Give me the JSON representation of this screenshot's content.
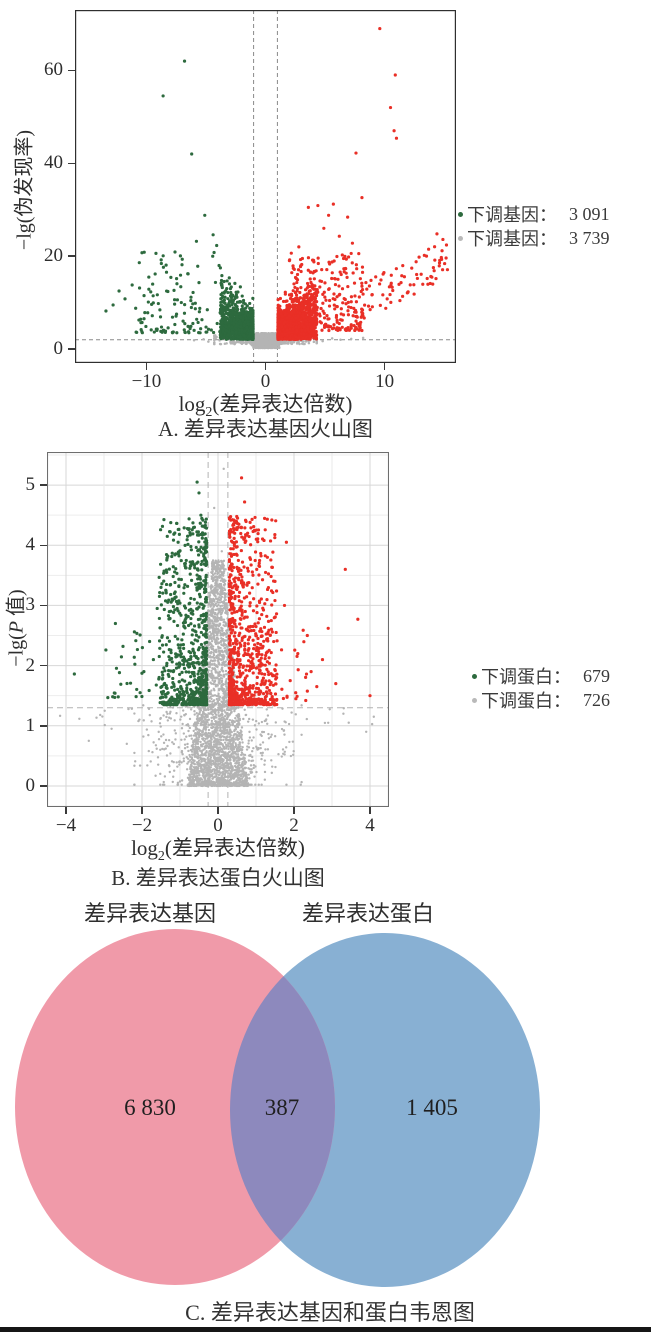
{
  "page": {
    "background": "#ffffff",
    "bottom_bar_color": "#161616"
  },
  "chart_data": [
    {
      "type": "scatter",
      "subtype": "volcano",
      "caption": "A. 差异表达基因火山图",
      "xlabel": {
        "pre": "log",
        "sub": "2",
        "post": "(差异表达倍数)"
      },
      "ylabel": "−lg(伪发现率)",
      "xlim": [
        -16,
        16
      ],
      "ylim": [
        -3,
        73
      ],
      "x_ticks": [
        -10,
        0,
        10
      ],
      "y_ticks": [
        0,
        20,
        40,
        60
      ],
      "grid": false,
      "thresholds": {
        "vlines": [
          -1,
          1
        ],
        "hline": 2
      },
      "legend": [
        {
          "label": "下调基因：",
          "value": "3 091",
          "color": "#2d6a3e"
        },
        {
          "label": "下调基因：",
          "value": "3 739",
          "color": "#b9b9b9"
        }
      ],
      "colors": {
        "up": "#e92f26",
        "down": "#2d6a3e",
        "ns": "#b4b4b4"
      },
      "clusters": [
        {
          "type": "blob",
          "color": "ns",
          "n": 1200,
          "xMean": 0,
          "xSd": 0.5,
          "clipX": 1.15,
          "yMean": 1.7,
          "ySd": 0.8,
          "yMin": 0.25,
          "yMax": 3.4
        },
        {
          "type": "uniform",
          "color": "ns",
          "n": 480,
          "gaussX": true,
          "xMean": 0,
          "xSd": 1.9,
          "xMin": -4.3,
          "xMax": 4.3,
          "yMin": 1.05,
          "yMax": 3.0,
          "powY": 1.2
        },
        {
          "type": "points",
          "color": "ns",
          "pts": [
            [
              -5.2,
              2.1
            ],
            [
              5.6,
              2.3
            ],
            [
              6.3,
              2.0
            ],
            [
              -6,
              1.9
            ],
            [
              4.8,
              1.7
            ],
            [
              7.2,
              2.2
            ],
            [
              -4.8,
              1.6
            ],
            [
              8.2,
              2.4
            ]
          ]
        },
        {
          "type": "wedge",
          "color": "down",
          "n": 1350,
          "xPeak": -1.05,
          "xFar": -3.8,
          "yBase": 2.1,
          "ySpread": 2.4,
          "slope": 0.5,
          "yMax": 16.5
        },
        {
          "type": "uniform",
          "color": "down",
          "n": 120,
          "xMin": -11,
          "xMax": -3.6,
          "yMin": 3.5,
          "yMax": 21,
          "powY": 2
        },
        {
          "type": "points",
          "color": "down",
          "pts": [
            [
              -6.8,
              62
            ],
            [
              -8.6,
              54.5
            ],
            [
              -6.2,
              42
            ],
            [
              -5.1,
              28.8
            ],
            [
              -4.4,
              24.6
            ],
            [
              -9.2,
              20.6
            ],
            [
              -10.6,
              18.6
            ],
            [
              -7.6,
              20.9
            ],
            [
              -4.1,
              22.3
            ],
            [
              -5.8,
              23.2
            ],
            [
              -3.9,
              18
            ],
            [
              -6.5,
              16.2
            ],
            [
              -9.8,
              15.5
            ],
            [
              -11.2,
              13.8
            ],
            [
              -12.3,
              12.5
            ],
            [
              -11.8,
              10.8
            ],
            [
              -12.8,
              9.5
            ],
            [
              -13.4,
              8.2
            ],
            [
              -10.2,
              11.5
            ],
            [
              -9,
              9.8
            ],
            [
              -8.2,
              12.4
            ],
            [
              -7.4,
              10.6
            ]
          ]
        },
        {
          "type": "wedge",
          "color": "up",
          "n": 1600,
          "xPeak": 1.05,
          "xFar": 4.3,
          "yBase": 2.1,
          "ySpread": 2.5,
          "slope": 0.45,
          "yMax": 17
        },
        {
          "type": "uniform",
          "color": "up",
          "n": 280,
          "xMin": 1.8,
          "xMax": 8.2,
          "yMin": 4,
          "yMax": 21,
          "powY": 1.7
        },
        {
          "type": "uniform",
          "color": "up",
          "n": 75,
          "xMin": 8,
          "xMax": 15.3,
          "yMin": 6,
          "yMax": 14,
          "powY": 1.3,
          "trend": 1.3
        },
        {
          "type": "points",
          "color": "up",
          "pts": [
            [
              9.6,
              69
            ],
            [
              10.9,
              59
            ],
            [
              10.5,
              52
            ],
            [
              10.8,
              47
            ],
            [
              11,
              45.4
            ],
            [
              7.6,
              42.2
            ],
            [
              8.1,
              32.6
            ],
            [
              5.7,
              31.2
            ],
            [
              4.4,
              30.9
            ],
            [
              5.3,
              28.8
            ],
            [
              3.6,
              30.5
            ],
            [
              6.9,
              28.4
            ],
            [
              14.9,
              23.6
            ],
            [
              15.2,
              22.4
            ],
            [
              14.4,
              24.8
            ],
            [
              13.7,
              21.5
            ],
            [
              12.9,
              19.8
            ],
            [
              4.9,
              26
            ],
            [
              2.8,
              22
            ],
            [
              3.1,
              19.5
            ],
            [
              6.2,
              24.3
            ],
            [
              7.3,
              22.8
            ]
          ]
        }
      ]
    },
    {
      "type": "scatter",
      "subtype": "volcano",
      "caption": "B. 差异表达蛋白火山图",
      "xlabel": {
        "pre": "log",
        "sub": "2",
        "post": "(差异表达倍数)"
      },
      "ylabel": {
        "pre": "−lg(",
        "italic": "P",
        "post": " 值)"
      },
      "xlim": [
        -4.5,
        4.5
      ],
      "ylim": [
        -0.35,
        5.55
      ],
      "x_ticks": [
        -4,
        -2,
        0,
        2,
        4
      ],
      "y_ticks": [
        0,
        1,
        2,
        3,
        4,
        5
      ],
      "grid": true,
      "thresholds": {
        "vlines": [
          -0.26,
          0.26
        ],
        "hline": 1.3
      },
      "legend": [
        {
          "label": "下调蛋白：",
          "value": "679",
          "color": "#2d6a3e"
        },
        {
          "label": "下调蛋白：",
          "value": "726",
          "color": "#b9b9b9"
        }
      ],
      "colors": {
        "up": "#e92f26",
        "down": "#2d6a3e",
        "ns": "#b4b4b4"
      },
      "clusters": [
        {
          "type": "funnel",
          "color": "ns",
          "n": 2400,
          "xCenter": 0,
          "yMin": 0,
          "yMax": 3.75,
          "powY": 1.7,
          "hwTop": 0.16,
          "hwBottom": 0.8,
          "powHw": 1.2
        },
        {
          "type": "blob",
          "color": "ns",
          "n": 600,
          "xMean": 0,
          "xSd": 0.85,
          "clipX": 2.2,
          "yMean": 0.6,
          "ySd": 0.45,
          "yMin": 0.02,
          "yMax": 1.34
        },
        {
          "type": "uniform",
          "color": "ns",
          "n": 55,
          "gaussX": true,
          "xMean": 0,
          "xSd": 1.9,
          "xMin": -4.3,
          "xMax": 4.3,
          "yMin": 1.0,
          "yMax": 1.32
        },
        {
          "type": "points",
          "color": "ns",
          "pts": [
            [
              0.15,
              5.27
            ],
            [
              -0.1,
              4.62
            ],
            [
              0.1,
              3.9
            ],
            [
              -0.15,
              3.72
            ],
            [
              0.2,
              3.6
            ],
            [
              4.1,
              1.15
            ],
            [
              3.9,
              0.9
            ],
            [
              -3.4,
              0.75
            ],
            [
              2.9,
              1.05
            ],
            [
              -2.8,
              0.95
            ],
            [
              3.3,
              1.2
            ],
            [
              -3.1,
              1.18
            ],
            [
              -2.4,
              0.7
            ],
            [
              2.2,
              0.85
            ]
          ]
        },
        {
          "type": "column",
          "color": "down",
          "n": 800,
          "xPeak": -0.3,
          "xFar": -1.55,
          "yBase": 1.35,
          "yTop": 4.45,
          "powY": 2.2
        },
        {
          "type": "uniform",
          "color": "down",
          "n": 26,
          "xMin": -3.0,
          "xMax": -1.55,
          "yMin": 1.45,
          "yMax": 2.85,
          "powY": 1.4
        },
        {
          "type": "points",
          "color": "down",
          "pts": [
            [
              -3.78,
              1.86
            ],
            [
              -2.95,
              2.26
            ],
            [
              -2.7,
              2.7
            ],
            [
              -2.5,
              2.32
            ],
            [
              -2.2,
              2.56
            ],
            [
              -1.95,
              1.9
            ],
            [
              -2.05,
              1.55
            ],
            [
              -1.7,
              2.1
            ],
            [
              -0.55,
              5.05
            ],
            [
              -0.5,
              4.87
            ],
            [
              -0.62,
              4.3
            ],
            [
              -0.45,
              4.5
            ],
            [
              -1.05,
              4.05
            ],
            [
              -0.8,
              4.15
            ],
            [
              -1.5,
              3.3
            ],
            [
              -1.35,
              3.55
            ],
            [
              -1.6,
              2.95
            ],
            [
              -1.8,
              2.4
            ]
          ]
        },
        {
          "type": "column",
          "color": "up",
          "n": 820,
          "xPeak": 0.3,
          "xFar": 1.55,
          "yBase": 1.35,
          "yTop": 4.5,
          "powY": 2.2
        },
        {
          "type": "uniform",
          "color": "up",
          "n": 38,
          "xMin": 0.9,
          "xMax": 2.4,
          "yMin": 1.4,
          "yMax": 3.0,
          "powY": 1.4
        },
        {
          "type": "points",
          "color": "up",
          "pts": [
            [
              0.62,
              5.12
            ],
            [
              0.7,
              4.72
            ],
            [
              0.78,
              4.2
            ],
            [
              0.55,
              4.35
            ],
            [
              1.8,
              4.05
            ],
            [
              3.35,
              3.6
            ],
            [
              3.68,
              2.77
            ],
            [
              2.9,
              2.62
            ],
            [
              2.35,
              2.5
            ],
            [
              2.1,
              2.2
            ],
            [
              1.9,
              1.75
            ],
            [
              2.6,
              1.65
            ],
            [
              2.05,
              1.45
            ],
            [
              1.75,
              3.0
            ],
            [
              1.5,
              3.4
            ],
            [
              1.3,
              3.8
            ],
            [
              2.45,
              1.9
            ],
            [
              4.0,
              1.5
            ],
            [
              3.1,
              1.7
            ],
            [
              2.75,
              2.1
            ]
          ]
        }
      ]
    },
    {
      "type": "venn",
      "caption": "C. 差异表达基因和蛋白韦恩图",
      "sets": [
        {
          "label": "差异表达基因",
          "value": "6 830",
          "color": "#f09aa9"
        },
        {
          "label": "差异表达蛋白",
          "value": "1 405",
          "color": "#88b0d3"
        }
      ],
      "overlap": {
        "value": "387",
        "color": "#8d89bd"
      }
    }
  ]
}
